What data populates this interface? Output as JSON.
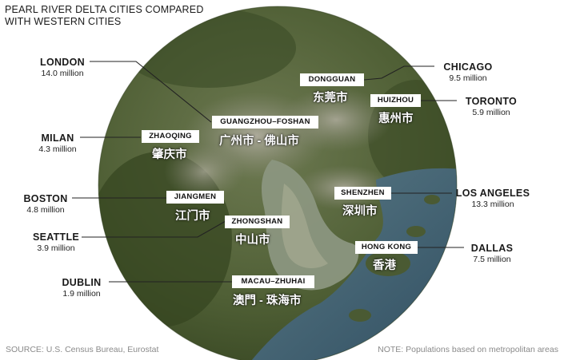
{
  "title": {
    "line1": "PEARL RIVER DELTA CITIES COMPARED",
    "line2": "WITH WESTERN CITIES"
  },
  "western_cities": {
    "london": {
      "name": "LONDON",
      "population": "14.0 million"
    },
    "milan": {
      "name": "MILAN",
      "population": "4.3 million"
    },
    "boston": {
      "name": "BOSTON",
      "population": "4.8 million"
    },
    "seattle": {
      "name": "SEATTLE",
      "population": "3.9 million"
    },
    "dublin": {
      "name": "DUBLIN",
      "population": "1.9 million"
    },
    "chicago": {
      "name": "CHICAGO",
      "population": "9.5 million"
    },
    "toronto": {
      "name": "TORONTO",
      "population": "5.9 million"
    },
    "los_angeles": {
      "name": "LOS ANGELES",
      "population": "13.3 million"
    },
    "dallas": {
      "name": "DALLAS",
      "population": "7.5 million"
    }
  },
  "prd_cities": {
    "dongguan": {
      "label": "DONGGUAN",
      "chinese": "东莞市"
    },
    "huizhou": {
      "label": "HUIZHOU",
      "chinese": "惠州市"
    },
    "guangzhou_foshan": {
      "label": "GUANGZHOU–FOSHAN",
      "chinese": "广州市 - 佛山市"
    },
    "zhaoqing": {
      "label": "ZHAOQING",
      "chinese": "肇庆市"
    },
    "jiangmen": {
      "label": "JIANGMEN",
      "chinese": "江门市"
    },
    "zhongshan": {
      "label": "ZHONGSHAN",
      "chinese": "中山市"
    },
    "shenzhen": {
      "label": "SHENZHEN",
      "chinese": "深圳市"
    },
    "hong_kong": {
      "label": "HONG KONG",
      "chinese": "香港"
    },
    "macau_zhuhai": {
      "label": "MACAU–ZHUHAI",
      "chinese": "澳門 - 珠海市"
    }
  },
  "footer": {
    "source": "SOURCE:  U.S. Census Bureau, Eurostat",
    "note": "NOTE:  Populations based on metropolitan areas"
  },
  "colors": {
    "land": "#5a6b3c",
    "forest": "#3a4a2a",
    "urban": "#9a9a90",
    "estuary": "#8d9a82",
    "sea": "#3f5d70",
    "leader": "#222222"
  }
}
